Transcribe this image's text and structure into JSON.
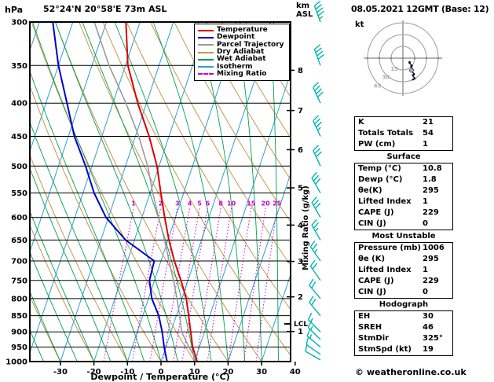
{
  "header": {
    "pressure_unit": "hPa",
    "station": "52°24'N 20°58'E 73m ASL",
    "datetime": "08.05.2021 12GMT (Base: 12)",
    "alt_unit_line1": "km",
    "alt_unit_line2": "ASL"
  },
  "colors": {
    "temperature": "#dd0000",
    "dewpoint": "#0000cc",
    "parcel": "#9a9a9a",
    "dry_adiabat": "#c89650",
    "wet_adiabat": "#00a050",
    "isotherm": "#2ba0cc",
    "mixing_ratio": "#cc00cc",
    "wind_barb": "#00b4b4",
    "isobar": "#000000",
    "hodograph_ring": "#999999",
    "hodograph_trace": "#000080"
  },
  "legend": [
    {
      "label": "Temperature",
      "color_key": "temperature",
      "dashed": false
    },
    {
      "label": "Dewpoint",
      "color_key": "dewpoint",
      "dashed": false
    },
    {
      "label": "Parcel Trajectory",
      "color_key": "parcel",
      "dashed": false
    },
    {
      "label": "Dry Adiabat",
      "color_key": "dry_adiabat",
      "dashed": false
    },
    {
      "label": "Wet Adiabat",
      "color_key": "wet_adiabat",
      "dashed": false
    },
    {
      "label": "Isotherm",
      "color_key": "isotherm",
      "dashed": false
    },
    {
      "label": "Mixing Ratio",
      "color_key": "mixing_ratio",
      "dashed": true
    }
  ],
  "axes": {
    "pressure_ticks": [
      300,
      350,
      400,
      450,
      500,
      550,
      600,
      650,
      700,
      750,
      800,
      850,
      900,
      950,
      1000
    ],
    "temp_ticks": [
      -30,
      -20,
      -10,
      0,
      10,
      20,
      30,
      40
    ],
    "km_ticks": [
      1,
      2,
      3,
      4,
      5,
      6,
      7,
      8
    ],
    "xlabel": "Dewpoint / Temperature (°C)",
    "mixing_axis_label": "Mixing Ratio (g/kg)",
    "lcl_label": "LCL"
  },
  "chart_data": {
    "type": "skewt-log-p-sounding",
    "pressure_hpa": [
      1000,
      950,
      900,
      850,
      800,
      750,
      700,
      650,
      600,
      550,
      500,
      450,
      400,
      350,
      300
    ],
    "temperature_c": [
      10.8,
      8.0,
      5.9,
      3.7,
      1.3,
      -2.1,
      -6.0,
      -9.7,
      -13.2,
      -16.8,
      -20.6,
      -25.9,
      -32.6,
      -39.3,
      -44.2
    ],
    "dewpoint_c": [
      1.8,
      -0.5,
      -2.6,
      -5.2,
      -9.0,
      -11.5,
      -12.0,
      -22.6,
      -30.7,
      -36.7,
      -41.9,
      -48.2,
      -53.7,
      -60.0,
      -66.0
    ],
    "parcel_c": [
      10.8,
      6.9,
      3.2,
      1.0,
      -1.5,
      -4.3,
      -7.6,
      -11.0,
      -15.0,
      -19.2,
      -23.4,
      -29.0,
      -36.1,
      -44.9,
      -53.6
    ],
    "lcl_pressure_hpa": 875,
    "mixing_ratio_lines_gkg": [
      1,
      2,
      3,
      4,
      5,
      6,
      8,
      10,
      15,
      20,
      25
    ],
    "winds": [
      {
        "p": 1000,
        "dir": 300,
        "spd": 10
      },
      {
        "p": 975,
        "dir": 305,
        "spd": 10
      },
      {
        "p": 950,
        "dir": 310,
        "spd": 15
      },
      {
        "p": 925,
        "dir": 315,
        "spd": 15
      },
      {
        "p": 900,
        "dir": 315,
        "spd": 15
      },
      {
        "p": 850,
        "dir": 320,
        "spd": 20
      },
      {
        "p": 800,
        "dir": 320,
        "spd": 20
      },
      {
        "p": 750,
        "dir": 325,
        "spd": 20
      },
      {
        "p": 700,
        "dir": 325,
        "spd": 25
      },
      {
        "p": 650,
        "dir": 330,
        "spd": 25
      },
      {
        "p": 600,
        "dir": 330,
        "spd": 30
      },
      {
        "p": 550,
        "dir": 330,
        "spd": 30
      },
      {
        "p": 500,
        "dir": 335,
        "spd": 30
      },
      {
        "p": 450,
        "dir": 335,
        "spd": 35
      },
      {
        "p": 400,
        "dir": 335,
        "spd": 40
      },
      {
        "p": 350,
        "dir": 340,
        "spd": 40
      },
      {
        "p": 300,
        "dir": 340,
        "spd": 45
      }
    ]
  },
  "hodograph": {
    "kt_label": "kt",
    "rings_kt": [
      15,
      30,
      45
    ],
    "storm_dir_deg": 325,
    "storm_speed_kt": 19
  },
  "panel": {
    "sections": [
      {
        "title": "",
        "rows": [
          [
            "K",
            "21"
          ],
          [
            "Totals Totals",
            "54"
          ],
          [
            "PW (cm)",
            "1"
          ]
        ]
      },
      {
        "title": "Surface",
        "rows": [
          [
            "Temp (°C)",
            "10.8"
          ],
          [
            "Dewp (°C)",
            "1.8"
          ],
          [
            "θe(K)",
            "295"
          ],
          [
            "Lifted Index",
            "1"
          ],
          [
            "CAPE (J)",
            "229"
          ],
          [
            "CIN (J)",
            "0"
          ]
        ]
      },
      {
        "title": "Most Unstable",
        "rows": [
          [
            "Pressure (mb)",
            "1006"
          ],
          [
            "θe (K)",
            "295"
          ],
          [
            "Lifted Index",
            "1"
          ],
          [
            "CAPE (J)",
            "229"
          ],
          [
            "CIN (J)",
            "0"
          ]
        ]
      },
      {
        "title": "Hodograph",
        "rows": [
          [
            "EH",
            "30"
          ],
          [
            "SREH",
            "46"
          ],
          [
            "StmDir",
            "325°"
          ],
          [
            "StmSpd (kt)",
            "19"
          ]
        ]
      }
    ]
  },
  "footer": {
    "copyright": "© weatheronline.co.uk"
  }
}
